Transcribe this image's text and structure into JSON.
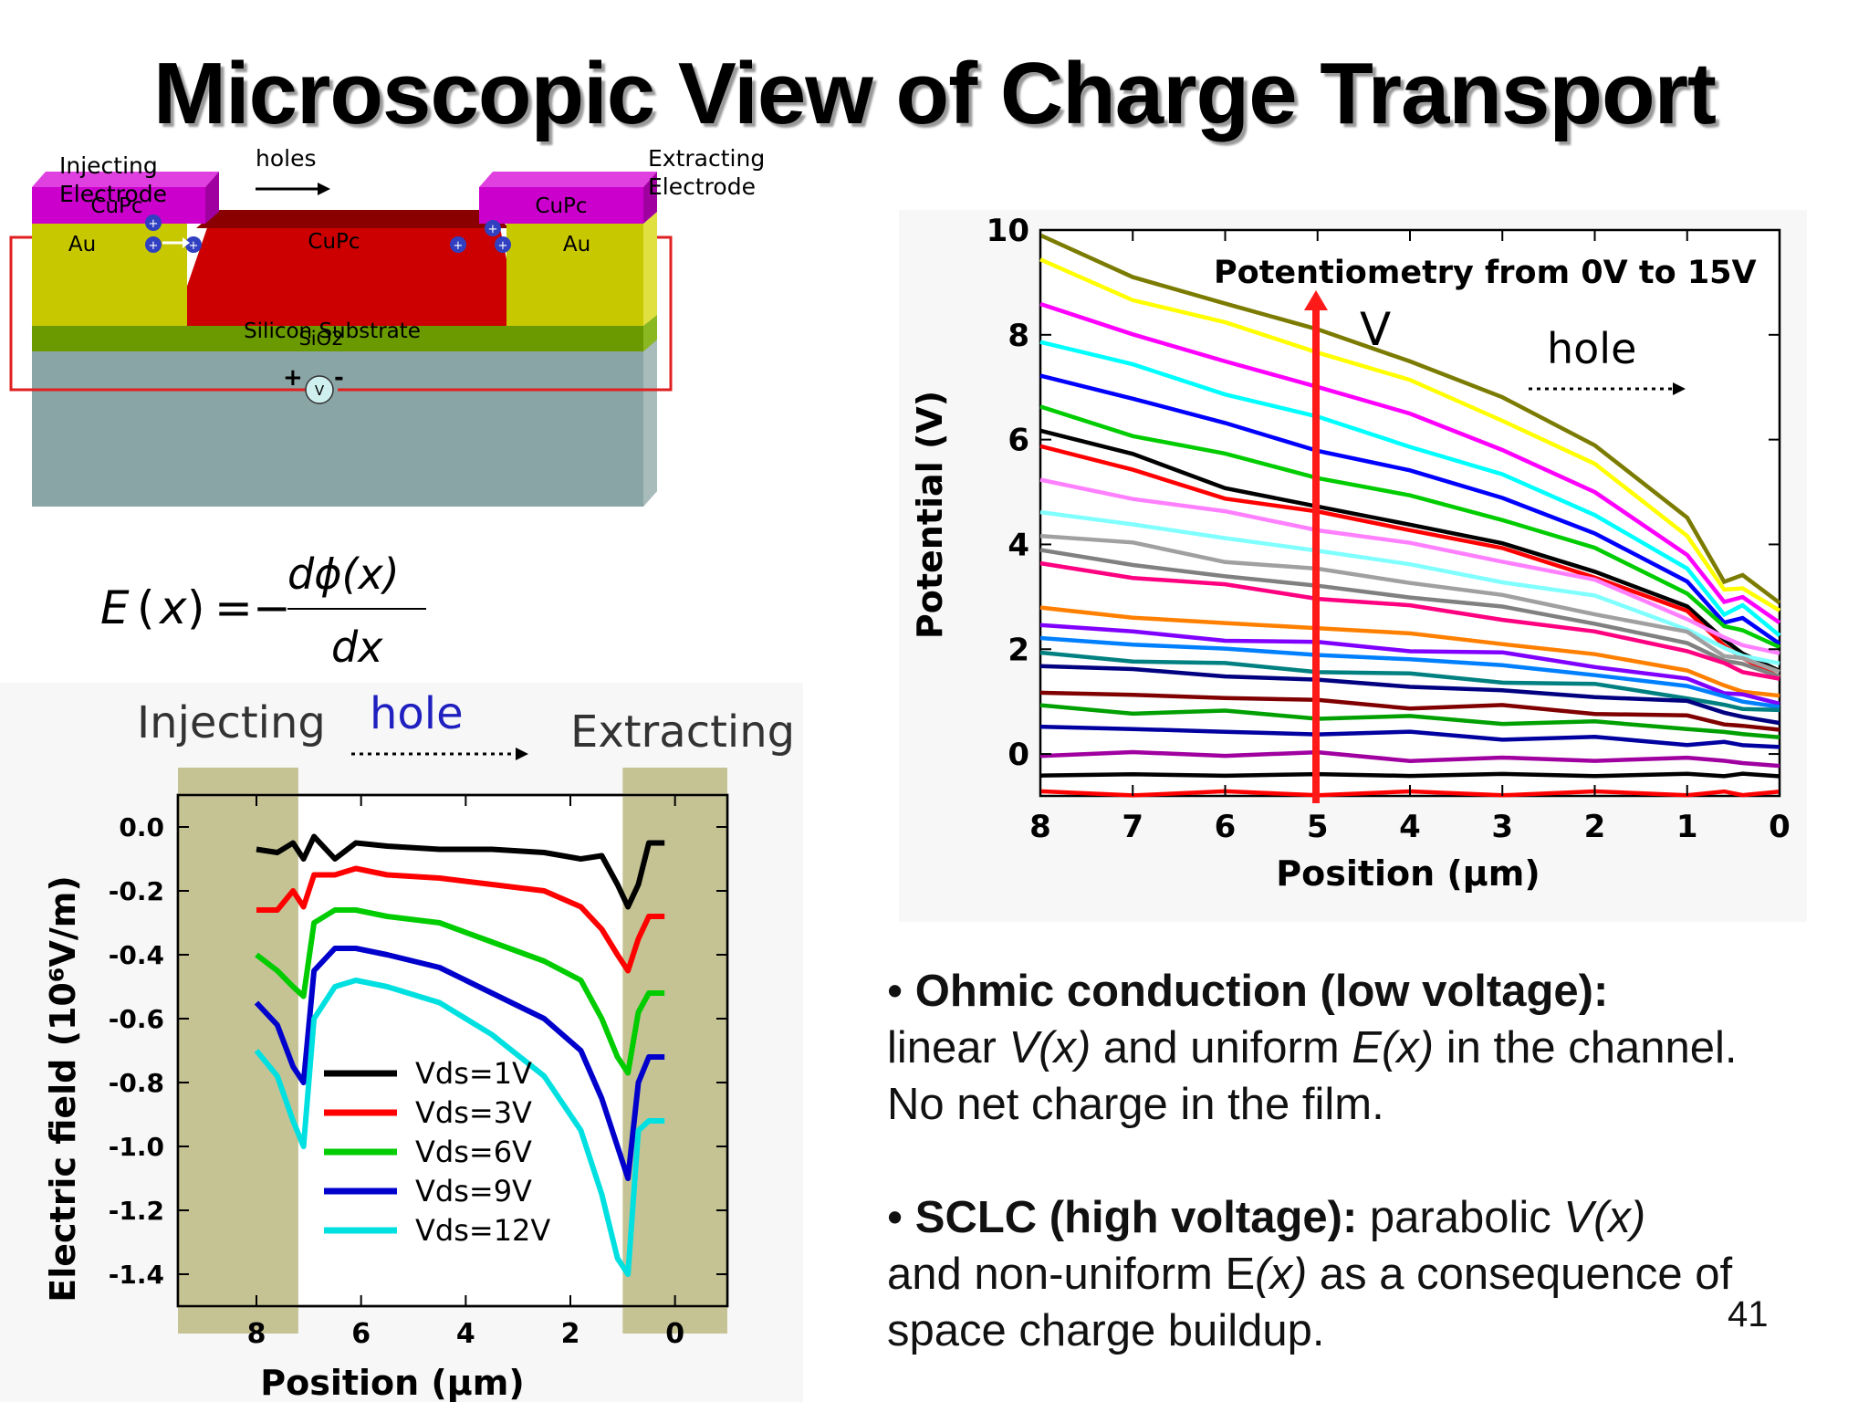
{
  "slide": {
    "title": "Microscopic View of Charge Transport",
    "page_number": "41"
  },
  "device": {
    "injecting_label_1": "Injecting",
    "injecting_label_2": "Electrode",
    "holes_label": "holes",
    "extracting_label_1": "Extracting",
    "extracting_label_2": "Electrode",
    "layer_top_left": "CuPc",
    "layer_top_right": "CuPc",
    "layer_au_left": "Au",
    "layer_au_right": "Au",
    "layer_channel": "CuPc",
    "layer_oxide": "SiO2",
    "layer_substrate": "Silicon Substrate",
    "meter_label": "V",
    "plus_sign": "+",
    "minus_sign": "-",
    "charge_symbol": "+",
    "colors": {
      "cupc_top": "#cc00cc",
      "au": "#c8c800",
      "cupc_channel": "#cc0000",
      "oxide": "#6a9a00",
      "substrate": "#8aa5a5",
      "wire": "#e02020"
    }
  },
  "equation": {
    "lhs_E": "E",
    "lhs_x": "x",
    "equals": "=",
    "minus": "−",
    "numerator": "dϕ(x)",
    "denominator": "dx"
  },
  "bullets": [
    {
      "bold": "Ohmic conduction (low voltage):",
      "p1": "linear ",
      "i1": "V(x)",
      "p2": " and uniform ",
      "i2": "E(x)",
      "p3": " in the channel. No net charge in the film."
    },
    {
      "bold": "SCLC (high voltage):",
      "p1": " parabolic ",
      "i1": "V(x)",
      "p2": " and non-uniform E",
      "i2": "(x)",
      "p3": " as a consequence of space charge buildup."
    }
  ],
  "chart_data": [
    {
      "type": "line",
      "title": "Potentiometry from 0V to 15V",
      "xlabel": "Position (µm)",
      "ylabel": "Potential (V)",
      "xlim": [
        8,
        0
      ],
      "ylim": [
        -0.8,
        10
      ],
      "xticks": [
        "8",
        "7",
        "6",
        "5",
        "4",
        "3",
        "2",
        "1",
        "0"
      ],
      "yticks": [
        "10",
        "8",
        "6",
        "4",
        "2",
        "0"
      ],
      "annotations": {
        "arrow_label": "V",
        "hole_label": "hole"
      },
      "x": [
        8,
        7,
        6,
        5,
        4,
        3,
        2,
        1,
        0.6,
        0.4,
        0
      ],
      "series": [
        {
          "color": "#7b7b00",
          "values": [
            9.9,
            9.1,
            8.6,
            8.1,
            7.5,
            6.8,
            5.9,
            4.5,
            3.3,
            3.4,
            2.9
          ]
        },
        {
          "color": "#ffff00",
          "values": [
            9.4,
            8.7,
            8.2,
            7.7,
            7.1,
            6.4,
            5.5,
            4.2,
            3.1,
            3.2,
            2.7
          ]
        },
        {
          "color": "#ff00ff",
          "values": [
            8.6,
            8.0,
            7.5,
            7.0,
            6.5,
            5.8,
            5.0,
            3.8,
            2.9,
            3.0,
            2.5
          ]
        },
        {
          "color": "#00ffff",
          "values": [
            7.9,
            7.4,
            6.9,
            6.4,
            5.9,
            5.3,
            4.6,
            3.5,
            2.7,
            2.8,
            2.3
          ]
        },
        {
          "color": "#0000ff",
          "values": [
            7.2,
            6.8,
            6.3,
            5.8,
            5.4,
            4.9,
            4.2,
            3.3,
            2.5,
            2.6,
            2.1
          ]
        },
        {
          "color": "#00cc00",
          "values": [
            6.6,
            6.1,
            5.7,
            5.3,
            4.9,
            4.5,
            3.9,
            3.1,
            2.4,
            2.4,
            2.0
          ]
        },
        {
          "color": "#000000",
          "values": [
            6.2,
            5.7,
            5.1,
            4.7,
            4.4,
            4.0,
            3.5,
            2.8,
            2.2,
            1.9,
            1.6
          ]
        },
        {
          "color": "#ff0000",
          "values": [
            5.9,
            5.4,
            4.9,
            4.6,
            4.3,
            3.9,
            3.4,
            2.7,
            2.1,
            1.8,
            1.5
          ]
        },
        {
          "color": "#ff80ff",
          "values": [
            5.2,
            4.9,
            4.6,
            4.3,
            4.0,
            3.7,
            3.3,
            2.6,
            2.2,
            2.1,
            1.9
          ]
        },
        {
          "color": "#80ffff",
          "values": [
            4.6,
            4.4,
            4.1,
            3.9,
            3.6,
            3.3,
            3.0,
            2.4,
            2.0,
            1.9,
            1.7
          ]
        },
        {
          "color": "#a0a0a0",
          "values": [
            4.2,
            4.0,
            3.7,
            3.5,
            3.3,
            3.0,
            2.7,
            2.3,
            1.9,
            1.8,
            1.6
          ]
        },
        {
          "color": "#808080",
          "values": [
            3.9,
            3.6,
            3.4,
            3.2,
            3.0,
            2.8,
            2.5,
            2.1,
            1.8,
            1.7,
            1.5
          ]
        },
        {
          "color": "#ff0080",
          "values": [
            3.6,
            3.4,
            3.2,
            3.0,
            2.8,
            2.6,
            2.3,
            2.0,
            1.7,
            1.6,
            1.4
          ]
        },
        {
          "color": "#ff8000",
          "values": [
            2.8,
            2.6,
            2.5,
            2.4,
            2.3,
            2.1,
            1.9,
            1.6,
            1.3,
            1.2,
            1.1
          ]
        },
        {
          "color": "#8000ff",
          "values": [
            2.5,
            2.3,
            2.2,
            2.1,
            2.0,
            1.9,
            1.7,
            1.4,
            1.2,
            1.1,
            1.0
          ]
        },
        {
          "color": "#0080ff",
          "values": [
            2.2,
            2.1,
            2.0,
            1.9,
            1.8,
            1.7,
            1.5,
            1.3,
            1.1,
            1.0,
            0.9
          ]
        },
        {
          "color": "#008080",
          "values": [
            1.9,
            1.8,
            1.7,
            1.6,
            1.5,
            1.4,
            1.3,
            1.1,
            0.9,
            0.9,
            0.8
          ]
        },
        {
          "color": "#000080",
          "values": [
            1.7,
            1.6,
            1.5,
            1.4,
            1.3,
            1.2,
            1.1,
            1.0,
            0.8,
            0.7,
            0.6
          ]
        },
        {
          "color": "#800000",
          "values": [
            1.2,
            1.1,
            1.1,
            1.0,
            0.9,
            0.9,
            0.8,
            0.7,
            0.6,
            0.5,
            0.5
          ]
        },
        {
          "color": "#00a000",
          "values": [
            0.9,
            0.8,
            0.8,
            0.7,
            0.7,
            0.6,
            0.6,
            0.5,
            0.4,
            0.4,
            0.3
          ]
        },
        {
          "color": "#0000a0",
          "values": [
            0.5,
            0.5,
            0.4,
            0.4,
            0.4,
            0.3,
            0.3,
            0.2,
            0.2,
            0.2,
            0.1
          ]
        },
        {
          "color": "#a000a0",
          "values": [
            0.0,
            0.0,
            0.0,
            0.0,
            -0.1,
            -0.1,
            -0.1,
            -0.1,
            -0.1,
            -0.2,
            -0.2
          ]
        },
        {
          "color": "#000000",
          "values": [
            -0.4,
            -0.4,
            -0.4,
            -0.4,
            -0.4,
            -0.4,
            -0.4,
            -0.4,
            -0.4,
            -0.4,
            -0.4
          ]
        },
        {
          "color": "#ff0000",
          "values": [
            -0.75,
            -0.75,
            -0.75,
            -0.75,
            -0.75,
            -0.75,
            -0.75,
            -0.75,
            -0.75,
            -0.75,
            -0.75
          ]
        }
      ]
    },
    {
      "type": "line",
      "title": "",
      "xlabel": "Position (µm)",
      "ylabel": "Electric field (10⁶V/m)",
      "xlim": [
        9.5,
        -1.0
      ],
      "ylim": [
        -1.5,
        0.1
      ],
      "xticks": [
        "8",
        "6",
        "4",
        "2",
        "0"
      ],
      "yticks": [
        "0.0",
        "-0.2",
        "-0.4",
        "-0.6",
        "-0.8",
        "-1.0",
        "-1.2",
        "-1.4"
      ],
      "annotations": {
        "left": "Injecting",
        "center": "hole",
        "right": "Extracting"
      },
      "shaded_regions": [
        [
          9.5,
          7.2
        ],
        [
          1.0,
          -1.0
        ]
      ],
      "legend_position": "center-left",
      "x": [
        8,
        7.6,
        7.3,
        7.1,
        6.9,
        6.5,
        6.1,
        5.5,
        4.5,
        3.5,
        2.5,
        1.8,
        1.4,
        1.1,
        0.9,
        0.7,
        0.5,
        0.2
      ],
      "series": [
        {
          "name": "Vds=1V",
          "color": "#000000",
          "values": [
            -0.07,
            -0.08,
            -0.05,
            -0.1,
            -0.03,
            -0.1,
            -0.05,
            -0.06,
            -0.07,
            -0.07,
            -0.08,
            -0.1,
            -0.09,
            -0.18,
            -0.25,
            -0.18,
            -0.05,
            -0.05
          ]
        },
        {
          "name": "Vds=3V",
          "color": "#ff0000",
          "values": [
            -0.26,
            -0.26,
            -0.2,
            -0.25,
            -0.15,
            -0.15,
            -0.13,
            -0.15,
            -0.16,
            -0.18,
            -0.2,
            -0.25,
            -0.32,
            -0.4,
            -0.45,
            -0.35,
            -0.28,
            -0.28
          ]
        },
        {
          "name": "Vds=6V",
          "color": "#00cc00",
          "values": [
            -0.4,
            -0.45,
            -0.5,
            -0.53,
            -0.3,
            -0.26,
            -0.26,
            -0.28,
            -0.3,
            -0.36,
            -0.42,
            -0.48,
            -0.6,
            -0.72,
            -0.77,
            -0.58,
            -0.52,
            -0.52
          ]
        },
        {
          "name": "Vds=9V",
          "color": "#0000cc",
          "values": [
            -0.55,
            -0.62,
            -0.75,
            -0.8,
            -0.45,
            -0.38,
            -0.38,
            -0.4,
            -0.44,
            -0.52,
            -0.6,
            -0.7,
            -0.85,
            -1.0,
            -1.1,
            -0.8,
            -0.72,
            -0.72
          ]
        },
        {
          "name": "Vds=12V",
          "color": "#00e0e0",
          "values": [
            -0.7,
            -0.78,
            -0.92,
            -1.0,
            -0.6,
            -0.5,
            -0.48,
            -0.5,
            -0.55,
            -0.65,
            -0.78,
            -0.95,
            -1.15,
            -1.35,
            -1.4,
            -0.95,
            -0.92,
            -0.92
          ]
        }
      ]
    }
  ]
}
